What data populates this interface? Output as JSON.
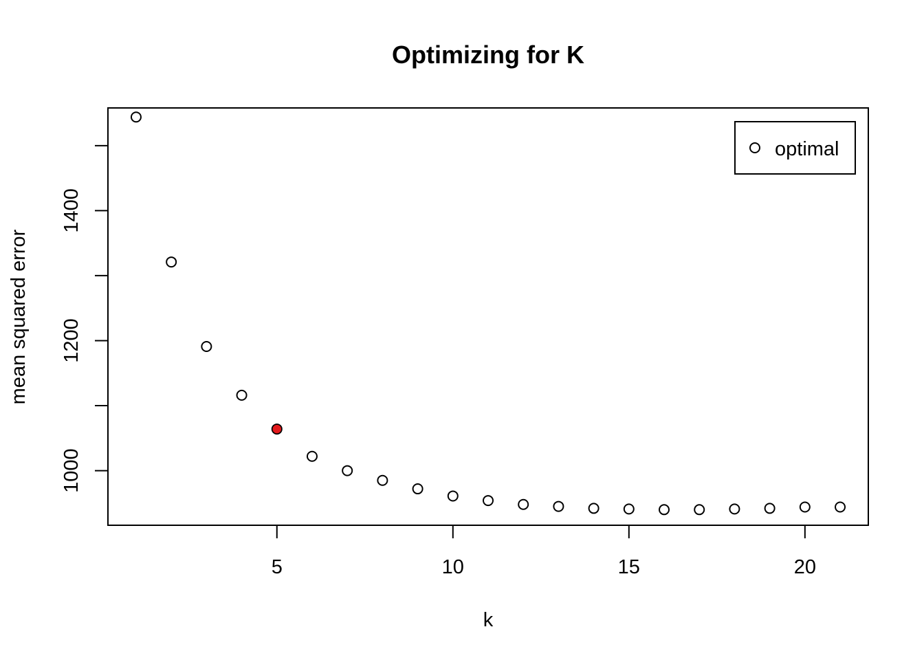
{
  "chart_data": {
    "type": "scatter",
    "title": "Optimizing for K",
    "xlabel": "k",
    "ylabel": "mean squared error",
    "xlim": [
      0.2,
      21.8
    ],
    "ylim": [
      916,
      1558
    ],
    "x_ticks": [
      5,
      10,
      15,
      20
    ],
    "y_ticks": [
      1000,
      1200,
      1400
    ],
    "y_tick_marks": [
      1000,
      1100,
      1200,
      1300,
      1400,
      1500
    ],
    "x": [
      1,
      2,
      3,
      4,
      5,
      6,
      7,
      8,
      9,
      10,
      11,
      12,
      13,
      14,
      15,
      16,
      17,
      18,
      19,
      20,
      21
    ],
    "y": [
      1544,
      1321,
      1191,
      1116,
      1064,
      1022,
      1000,
      985,
      972,
      961,
      954,
      948,
      945,
      942,
      941,
      940,
      940,
      941,
      942,
      944,
      944
    ],
    "highlight": {
      "x": 5,
      "y": 1064,
      "color": "#e31a1c"
    },
    "marker_color": "#000000",
    "grid": false,
    "legend": {
      "position": "top-right",
      "entries": [
        {
          "label": "optimal",
          "marker": "open-circle"
        }
      ]
    }
  }
}
